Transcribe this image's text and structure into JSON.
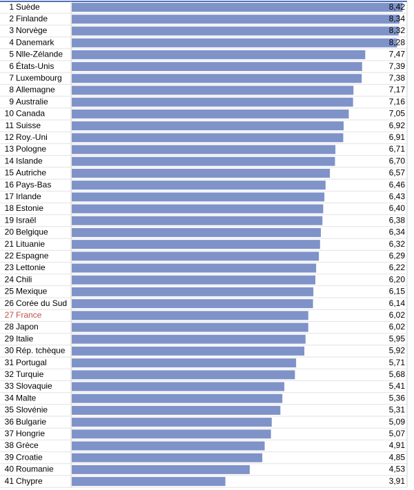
{
  "chart_data": {
    "type": "bar",
    "orientation": "horizontal",
    "ranks": [
      "1",
      "2",
      "3",
      "4",
      "5",
      "6",
      "7",
      "8",
      "9",
      "10",
      "11",
      "12",
      "13",
      "14",
      "15",
      "16",
      "17",
      "18",
      "19",
      "20",
      "21",
      "22",
      "23",
      "24",
      "25",
      "26",
      "27",
      "28",
      "29",
      "30",
      "31",
      "32",
      "33",
      "34",
      "35",
      "36",
      "37",
      "38",
      "39",
      "40",
      "41"
    ],
    "categories": [
      "Suède",
      "Finlande",
      "Norvège",
      "Danemark",
      "Nlle-Zélande",
      "États-Unis",
      "Luxembourg",
      "Allemagne",
      "Australie",
      "Canada",
      "Suisse",
      "Roy.-Uni",
      "Pologne",
      "Islande",
      "Autriche",
      "Pays-Bas",
      "Irlande",
      "Estonie",
      "Israël",
      "Belgique",
      "Lituanie",
      "Espagne",
      "Lettonie",
      "Chili",
      "Mexique",
      "Corée du Sud",
      "France",
      "Japon",
      "Italie",
      "Rép. tchèque",
      "Portugal",
      "Turquie",
      "Slovaquie",
      "Malte",
      "Slovénie",
      "Bulgarie",
      "Hongrie",
      "Grèce",
      "Croatie",
      "Roumanie",
      "Chypre"
    ],
    "values": [
      8.42,
      8.34,
      8.32,
      8.28,
      7.47,
      7.39,
      7.38,
      7.17,
      7.16,
      7.05,
      6.92,
      6.91,
      6.71,
      6.7,
      6.57,
      6.46,
      6.43,
      6.4,
      6.38,
      6.34,
      6.32,
      6.29,
      6.22,
      6.2,
      6.15,
      6.14,
      6.02,
      6.02,
      5.95,
      5.92,
      5.71,
      5.68,
      5.41,
      5.36,
      5.31,
      5.09,
      5.07,
      4.91,
      4.85,
      4.53,
      3.91
    ],
    "value_labels": [
      "8,42",
      "8,34",
      "8,32",
      "8,28",
      "7,47",
      "7,39",
      "7,38",
      "7,17",
      "7,16",
      "7,05",
      "6,92",
      "6,91",
      "6,71",
      "6,70",
      "6,57",
      "6,46",
      "6,43",
      "6,40",
      "6,38",
      "6,34",
      "6,32",
      "6,29",
      "6,22",
      "6,20",
      "6,15",
      "6,14",
      "6,02",
      "6,02",
      "5,95",
      "5,92",
      "5,71",
      "5,68",
      "5,41",
      "5,36",
      "5,31",
      "5,09",
      "5,07",
      "4,91",
      "4,85",
      "4,53",
      "3,91"
    ],
    "color": "#7f93c9",
    "highlight": "France",
    "highlight_color": "#c0504d",
    "xlim": [
      0,
      8.5
    ]
  }
}
